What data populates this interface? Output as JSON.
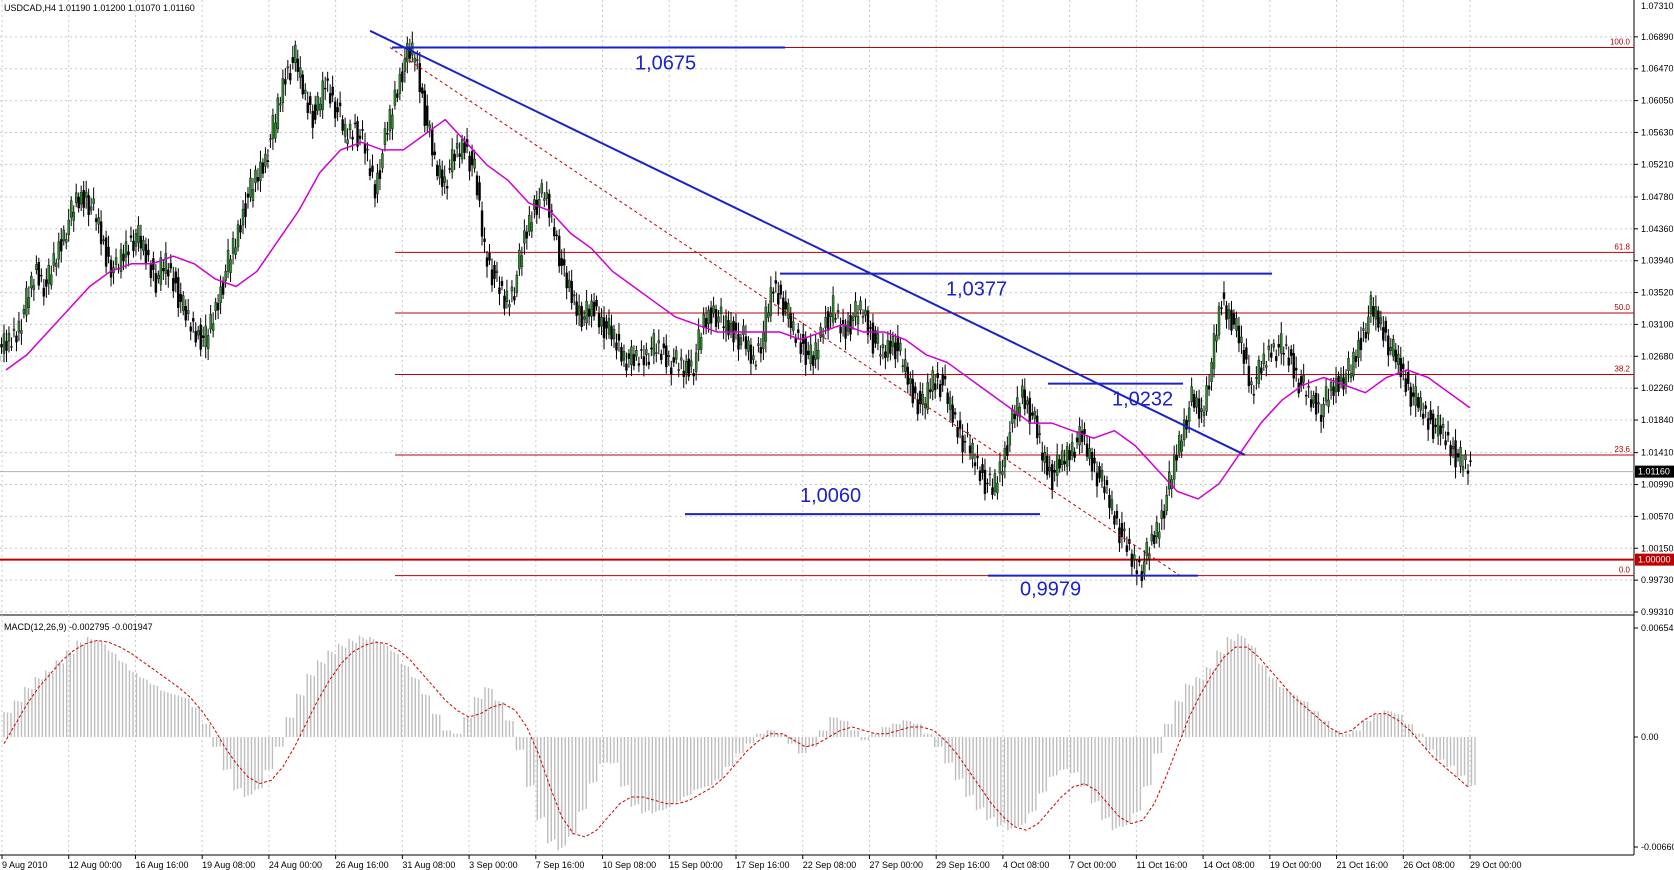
{
  "chart_data": [
    {
      "type": "candlestick",
      "header": "USDCAD,H4  1.01190 1.01200 1.01070 1.01160",
      "symbol": "USDCAD",
      "timeframe": "H4",
      "ohlc_header": [
        "1.01190",
        "1.01200",
        "1.01070",
        "1.01160"
      ],
      "current_price_label": "1.01160",
      "ylim": [
        0.9931,
        1.0731
      ],
      "y_ticks": [
        "1.06890",
        "1.06470",
        "1.06050",
        "1.05630",
        "1.05210",
        "1.04780",
        "1.04360",
        "1.03940",
        "1.03520",
        "1.03100",
        "1.02680",
        "1.02260",
        "1.01840",
        "1.01410",
        "1.00990",
        "1.00570",
        "1.00150",
        "0.99730",
        "0.99310"
      ],
      "y_top_label": "1.07310",
      "x_ticks": [
        "9 Aug 2010",
        "12 Aug 00:00",
        "16 Aug 16:00",
        "19 Aug 08:00",
        "24 Aug 00:00",
        "26 Aug 16:00",
        "31 Aug 08:00",
        "3 Sep 00:00",
        "7 Sep 16:00",
        "10 Sep 08:00",
        "15 Sep 00:00",
        "17 Sep 16:00",
        "22 Sep 08:00",
        "27 Sep 00:00",
        "29 Sep 16:00",
        "4 Oct 08:00",
        "7 Oct 00:00",
        "11 Oct 16:00",
        "14 Oct 08:00",
        "19 Oct 00:00",
        "21 Oct 16:00",
        "26 Oct 08:00",
        "29 Oct 00:00"
      ],
      "close_path": [
        1.028,
        1.03,
        1.034,
        1.038,
        1.036,
        1.04,
        1.044,
        1.047,
        1.048,
        1.045,
        1.04,
        1.038,
        1.041,
        1.043,
        1.04,
        1.037,
        1.039,
        1.036,
        1.032,
        1.03,
        1.029,
        1.033,
        1.038,
        1.042,
        1.047,
        1.05,
        1.053,
        1.058,
        1.064,
        1.066,
        1.061,
        1.058,
        1.063,
        1.06,
        1.056,
        1.057,
        1.054,
        1.049,
        1.055,
        1.061,
        1.066,
        1.067,
        1.059,
        1.052,
        1.05,
        1.053,
        1.055,
        1.051,
        1.041,
        1.037,
        1.034,
        1.036,
        1.042,
        1.047,
        1.048,
        1.044,
        1.037,
        1.034,
        1.032,
        1.033,
        1.031,
        1.029,
        1.027,
        1.026,
        1.027,
        1.028,
        1.027,
        1.026,
        1.025,
        1.026,
        1.031,
        1.033,
        1.031,
        1.03,
        1.029,
        1.026,
        1.03,
        1.036,
        1.034,
        1.03,
        1.028,
        1.026,
        1.031,
        1.033,
        1.03,
        1.032,
        1.033,
        1.029,
        1.027,
        1.029,
        1.026,
        1.022,
        1.02,
        1.024,
        1.023,
        1.019,
        1.016,
        1.014,
        1.011,
        1.009,
        1.013,
        1.018,
        1.022,
        1.019,
        1.014,
        1.011,
        1.013,
        1.015,
        1.016,
        1.013,
        1.01,
        1.007,
        1.003,
        1.0,
        0.999,
        1.002,
        1.006,
        1.011,
        1.017,
        1.021,
        1.019,
        1.026,
        1.034,
        1.032,
        1.028,
        1.023,
        1.025,
        1.028,
        1.028,
        1.026,
        1.023,
        1.021,
        1.02,
        1.022,
        1.024,
        1.025,
        1.029,
        1.033,
        1.031,
        1.028,
        1.025,
        1.022,
        1.02,
        1.018,
        1.017,
        1.015,
        1.013,
        1.012
      ],
      "ma_path": [
        1.025,
        1.027,
        1.03,
        1.033,
        1.036,
        1.038,
        1.039,
        1.039,
        1.04,
        1.039,
        1.037,
        1.036,
        1.038,
        1.042,
        1.046,
        1.051,
        1.054,
        1.055,
        1.054,
        1.054,
        1.056,
        1.058,
        1.055,
        1.052,
        1.05,
        1.047,
        1.046,
        1.043,
        1.041,
        1.038,
        1.036,
        1.034,
        1.032,
        1.031,
        1.03,
        1.03,
        1.03,
        1.03,
        1.029,
        1.03,
        1.031,
        1.03,
        1.03,
        1.029,
        1.027,
        1.026,
        1.024,
        1.022,
        1.02,
        1.018,
        1.018,
        1.017,
        1.016,
        1.017,
        1.015,
        1.012,
        1.009,
        1.008,
        1.01,
        1.014,
        1.018,
        1.021,
        1.023,
        1.024,
        1.023,
        1.022,
        1.024,
        1.025,
        1.024,
        1.022,
        1.02
      ],
      "lines": [
        {
          "label": "100.0",
          "value": 1.0675
        },
        {
          "label": "61.8",
          "value": 1.0405
        },
        {
          "label": "50.0",
          "value": 1.0325
        },
        {
          "label": "38.2",
          "value": 1.0244
        },
        {
          "label": "23.6",
          "value": 1.0138
        },
        {
          "label": "0.0",
          "value": 0.9979
        }
      ],
      "support_level": {
        "label": "1.00000",
        "value": 1.0
      },
      "annotations": [
        {
          "text": "1,0675",
          "value": 1.0675
        },
        {
          "text": "1,0377",
          "value": 1.0377
        },
        {
          "text": "1,0232",
          "value": 1.0232
        },
        {
          "text": "1,0060",
          "value": 1.006
        },
        {
          "text": "0,9979",
          "value": 0.9979
        }
      ]
    },
    {
      "type": "bar",
      "header": "MACD(12,26,9) -0.002795 -0.001947",
      "y_ticks": [
        "0.006549",
        "0.00",
        "-0.006607"
      ],
      "ylim": [
        -0.006607,
        0.006549
      ],
      "hist": [
        0.0015,
        0.0022,
        0.003,
        0.0036,
        0.004,
        0.0046,
        0.0052,
        0.0058,
        0.006,
        0.0058,
        0.0052,
        0.0046,
        0.004,
        0.0036,
        0.0032,
        0.0028,
        0.0026,
        0.0024,
        0.0018,
        0.0008,
        -0.0006,
        -0.002,
        -0.0032,
        -0.0036,
        -0.0032,
        -0.002,
        -0.0006,
        0.0012,
        0.0026,
        0.0038,
        0.0046,
        0.0052,
        0.0056,
        0.0059,
        0.0061,
        0.006,
        0.0057,
        0.0052,
        0.0044,
        0.0036,
        0.0026,
        0.0014,
        0.0004,
        0.0002,
        0.0012,
        0.0024,
        0.003,
        0.0022,
        0.001,
        -0.0008,
        -0.003,
        -0.005,
        -0.0064,
        -0.0068,
        -0.006,
        -0.0045,
        -0.0028,
        -0.0016,
        -0.0016,
        -0.003,
        -0.0042,
        -0.0046,
        -0.0046,
        -0.0044,
        -0.004,
        -0.0036,
        -0.0032,
        -0.003,
        -0.0026,
        -0.0018,
        -0.001,
        -0.0004,
        0.0002,
        0.0004,
        0.0002,
        -0.0004,
        -0.001,
        -0.0006,
        0.0004,
        0.0012,
        0.001,
        0.0004,
        -0.0002,
        0.0002,
        0.0006,
        0.0008,
        0.001,
        0.0008,
        0.0002,
        -0.0006,
        -0.0016,
        -0.0026,
        -0.0036,
        -0.0044,
        -0.005,
        -0.0054,
        -0.0056,
        -0.0054,
        -0.0046,
        -0.0034,
        -0.0024,
        -0.002,
        -0.0022,
        -0.003,
        -0.004,
        -0.005,
        -0.0056,
        -0.0054,
        -0.0046,
        -0.003,
        -0.001,
        0.0008,
        0.0022,
        0.0032,
        0.0036,
        0.0042,
        0.0052,
        0.006,
        0.0062,
        0.0056,
        0.0044,
        0.0036,
        0.003,
        0.0026,
        0.0022,
        0.0016,
        0.001,
        0.0004,
        0.0002,
        0.0004,
        0.001,
        0.0014,
        0.0016,
        0.0014,
        0.0008,
        0.0002,
        -0.0008,
        -0.0014,
        -0.0018,
        -0.0024,
        -0.003
      ],
      "signal": [
        -0.0004,
        0.0008,
        0.002,
        0.003,
        0.0038,
        0.0046,
        0.0052,
        0.0056,
        0.0058,
        0.0057,
        0.0054,
        0.005,
        0.0045,
        0.004,
        0.0035,
        0.003,
        0.0024,
        0.0016,
        0.0006,
        -0.0006,
        -0.0016,
        -0.0024,
        -0.0028,
        -0.0026,
        -0.0018,
        -0.0006,
        0.0008,
        0.0022,
        0.0034,
        0.0044,
        0.0051,
        0.0055,
        0.0057,
        0.0056,
        0.0052,
        0.0046,
        0.0038,
        0.003,
        0.0022,
        0.0016,
        0.0012,
        0.0014,
        0.0018,
        0.002,
        0.0016,
        0.0006,
        -0.001,
        -0.003,
        -0.0048,
        -0.0058,
        -0.006,
        -0.0056,
        -0.0048,
        -0.004,
        -0.0036,
        -0.0036,
        -0.0038,
        -0.004,
        -0.004,
        -0.0038,
        -0.0034,
        -0.003,
        -0.0024,
        -0.0016,
        -0.0008,
        -0.0002,
        0.0002,
        0.0002,
        -0.0002,
        -0.0006,
        -0.0004,
        0.0,
        0.0004,
        0.0006,
        0.0004,
        0.0002,
        0.0002,
        0.0004,
        0.0006,
        0.0006,
        0.0004,
        -0.0002,
        -0.001,
        -0.002,
        -0.003,
        -0.004,
        -0.0048,
        -0.0054,
        -0.0056,
        -0.0052,
        -0.0044,
        -0.0036,
        -0.003,
        -0.0028,
        -0.0032,
        -0.004,
        -0.0048,
        -0.0052,
        -0.005,
        -0.004,
        -0.0024,
        -0.0006,
        0.0012,
        0.0026,
        0.0038,
        0.0048,
        0.0054,
        0.0054,
        0.0048,
        0.004,
        0.0032,
        0.0024,
        0.0018,
        0.0012,
        0.0006,
        0.0002,
        0.0004,
        0.001,
        0.0014,
        0.0014,
        0.001,
        0.0004,
        -0.0004,
        -0.0012,
        -0.0018,
        -0.0024,
        -0.003
      ]
    }
  ]
}
